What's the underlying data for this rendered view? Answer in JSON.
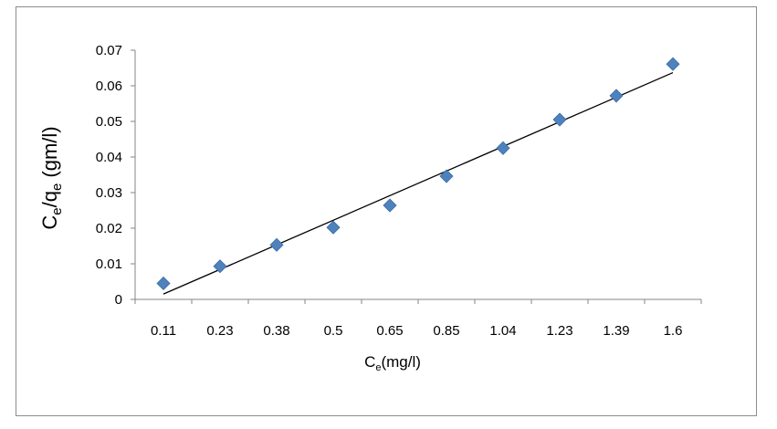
{
  "chart_data": {
    "type": "scatter",
    "title": "",
    "xlabel_main": "C",
    "xlabel_sub": "e",
    "xlabel_rest": "(mg/l)",
    "ylabel_c": "C",
    "ylabel_sub1": "e",
    "ylabel_slash": "/q",
    "ylabel_sub2": "e",
    "ylabel_rest": " (gm/l)",
    "categories": [
      "0.11",
      "0.23",
      "0.38",
      "0.5",
      "0.65",
      "0.85",
      "1.04",
      "1.23",
      "1.39",
      "1.6"
    ],
    "series": [
      {
        "values": [
          0.0045,
          0.0093,
          0.0153,
          0.0202,
          0.0264,
          0.0346,
          0.0425,
          0.0505,
          0.0572,
          0.0661
        ],
        "color": "#4f81bd",
        "marker": "diamond"
      }
    ],
    "trendline": {
      "type": "linear",
      "start": 0.0015,
      "end": 0.0637,
      "color": "#000000"
    },
    "ylim": [
      0,
      0.07
    ],
    "yticks": [
      "0",
      "0.01",
      "0.02",
      "0.03",
      "0.04",
      "0.05",
      "0.06",
      "0.07"
    ],
    "grid": false,
    "legend": "none"
  }
}
